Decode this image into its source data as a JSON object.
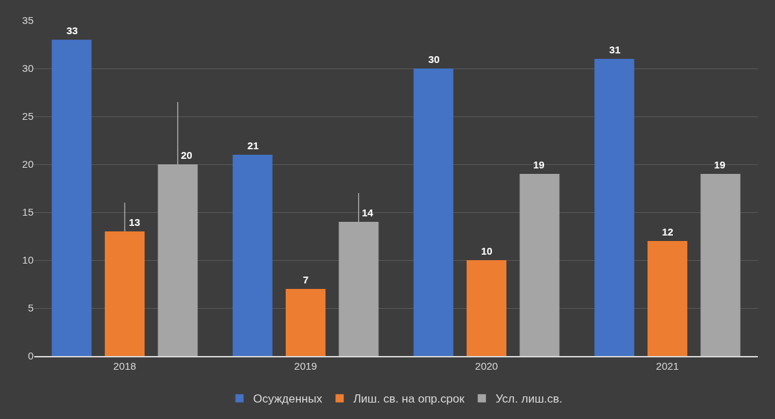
{
  "chart_data": {
    "type": "bar",
    "categories": [
      "2018",
      "2019",
      "2020",
      "2021"
    ],
    "series": [
      {
        "name": "Осужденных",
        "color": "#4472c4",
        "values": [
          33,
          21,
          30,
          31
        ]
      },
      {
        "name": "Лиш. св. на опр.срок",
        "color": "#ed7d31",
        "values": [
          13,
          7,
          10,
          12
        ],
        "errors": [
          [
            13,
            16
          ],
          null,
          null,
          null
        ]
      },
      {
        "name": "Усл. лиш.св.",
        "color": "#a5a5a5",
        "values": [
          20,
          14,
          19,
          19
        ],
        "errors": [
          [
            20,
            26.5
          ],
          [
            14,
            17
          ],
          null,
          null
        ]
      }
    ],
    "ylim": [
      0,
      35
    ],
    "yticks": [
      0,
      5,
      10,
      15,
      20,
      25,
      30,
      35
    ],
    "grid": "y",
    "legend": "bottom",
    "data_labels": true
  }
}
